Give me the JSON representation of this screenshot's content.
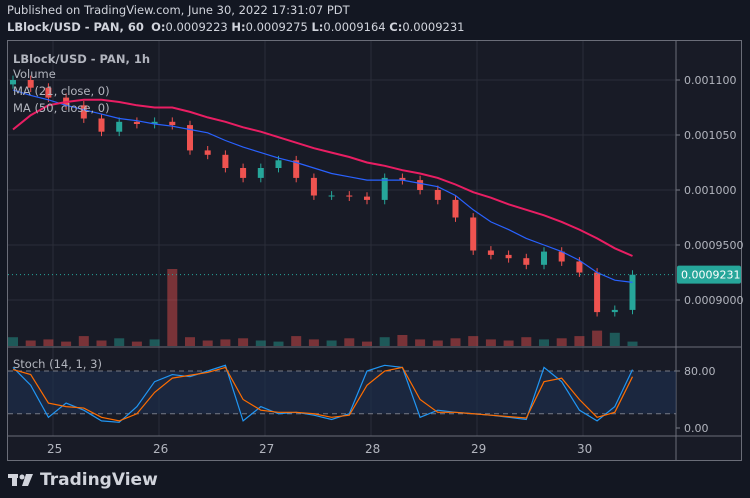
{
  "header": {
    "published": "Published on TradingView.com, June 30, 2022 17:31:07 PDT",
    "symbol": "LBlock/USD - PAN, 60",
    "o_label": "O:",
    "o": "0.0009223",
    "h_label": "H:",
    "h": "0.0009275",
    "l_label": "L:",
    "l": "0.0009164",
    "c_label": "C:",
    "c": "0.0009231"
  },
  "legend": {
    "title": "LBlock/USD - PAN, 1h",
    "volume": "Volume",
    "ma21": "MA (21, close, 0)",
    "ma50": "MA (50, close, 0)",
    "stoch": "Stoch (14, 1, 3)"
  },
  "price_axis": [
    "0.001100",
    "0.001050",
    "0.001000",
    "0.0009500",
    "0.0009000"
  ],
  "last_price": "0.0009231",
  "stoch_axis": [
    "80.00",
    "0.00"
  ],
  "time_axis": [
    "25",
    "26",
    "27",
    "28",
    "29",
    "30"
  ],
  "footer": {
    "brand": "TradingView"
  },
  "colors": {
    "up": "#26a69a",
    "down": "#ef5350",
    "ma21": "#2962ff",
    "ma50": "#e91e63",
    "stoch_k": "#2196f3",
    "stoch_d": "#ff6d00",
    "background": "#181b26"
  },
  "chart_data": {
    "type": "candlestick",
    "ylim": [
      0.00086,
      0.001137
    ],
    "close": [
      0.0011,
      0.001093,
      0.001084,
      0.001077,
      0.001065,
      0.001053,
      0.001062,
      0.00106,
      0.001062,
      0.001059,
      0.001036,
      0.001032,
      0.00102,
      0.001011,
      0.00102,
      0.001027,
      0.001011,
      0.000995,
      0.000995,
      0.000994,
      0.000991,
      0.001011,
      0.001009,
      0.001,
      0.000991,
      0.000975,
      0.000945,
      0.000941,
      0.000938,
      0.000932,
      0.000944,
      0.000935,
      0.000925,
      0.000889,
      0.000891,
      0.000923
    ],
    "ma21": [
      0.001091,
      0.001086,
      0.001082,
      0.001077,
      0.001073,
      0.001069,
      0.001065,
      0.001063,
      0.00106,
      0.001058,
      0.001055,
      0.001052,
      0.001045,
      0.001039,
      0.001034,
      0.001029,
      0.001025,
      0.00102,
      0.001015,
      0.001012,
      0.001009,
      0.001009,
      0.001009,
      0.001006,
      0.001003,
      0.000995,
      0.000982,
      0.000971,
      0.000964,
      0.000956,
      0.00095,
      0.000944,
      0.000936,
      0.000925,
      0.000918,
      0.000916
    ],
    "ma50": [
      0.001055,
      0.001068,
      0.001077,
      0.00108,
      0.001082,
      0.001082,
      0.00108,
      0.001077,
      0.001075,
      0.001075,
      0.001071,
      0.001066,
      0.001062,
      0.001057,
      0.001053,
      0.001048,
      0.001043,
      0.001038,
      0.001034,
      0.00103,
      0.001025,
      0.001022,
      0.001018,
      0.001015,
      0.001011,
      0.001005,
      0.000998,
      0.000993,
      0.000987,
      0.000982,
      0.000977,
      0.000971,
      0.000964,
      0.000956,
      0.000947,
      0.00094
    ],
    "volume": [
      8,
      5,
      6,
      4,
      9,
      5,
      7,
      4,
      6,
      70,
      8,
      5,
      6,
      7,
      5,
      4,
      9,
      6,
      5,
      7,
      4,
      8,
      10,
      6,
      5,
      7,
      9,
      6,
      5,
      8,
      6,
      7,
      9,
      14,
      12,
      4
    ],
    "stoch_k": [
      85,
      60,
      15,
      35,
      25,
      10,
      8,
      30,
      65,
      75,
      72,
      80,
      88,
      10,
      30,
      20,
      22,
      18,
      12,
      20,
      80,
      88,
      85,
      15,
      25,
      22,
      20,
      18,
      15,
      12,
      85,
      65,
      25,
      10,
      30,
      82
    ],
    "stoch_d": [
      82,
      75,
      35,
      30,
      28,
      15,
      10,
      20,
      50,
      70,
      74,
      78,
      85,
      40,
      25,
      22,
      22,
      20,
      15,
      18,
      60,
      80,
      85,
      40,
      22,
      22,
      20,
      18,
      16,
      14,
      65,
      70,
      40,
      15,
      22,
      72
    ],
    "stoch_bands": [
      20,
      80
    ]
  }
}
